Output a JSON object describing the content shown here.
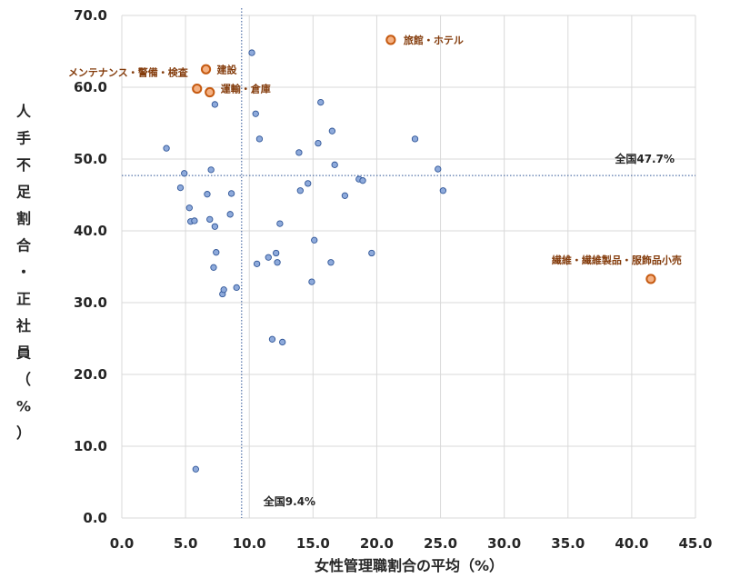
{
  "chart_data": {
    "type": "scatter",
    "xlabel": "女性管理職割合の平均（%）",
    "ylabel_chars": [
      "人",
      "手",
      "不",
      "足",
      "割",
      "合",
      "・",
      "正",
      "社",
      "員",
      "（",
      "%",
      "）"
    ],
    "xlim": [
      0,
      45
    ],
    "ylim": [
      0,
      70
    ],
    "x_ticks": [
      "0.0",
      "5.0",
      "10.0",
      "15.0",
      "20.0",
      "25.0",
      "30.0",
      "35.0",
      "40.0",
      "45.0"
    ],
    "y_ticks": [
      "0.0",
      "10.0",
      "20.0",
      "30.0",
      "40.0",
      "50.0",
      "60.0",
      "70.0"
    ],
    "grid": true,
    "colors": {
      "point_fill": "#8eaadb",
      "point_stroke": "#2f5597",
      "highlight_fill": "#f4b183",
      "highlight_stroke": "#c55a11",
      "highlight_text": "#843c0c",
      "reference_line": "#2f5597",
      "grid": "#d9d9d9"
    },
    "reference_lines": {
      "vertical": {
        "x": 9.4,
        "label": "全国9.4%"
      },
      "horizontal": {
        "y": 47.7,
        "label": "全国47.7%"
      }
    },
    "points": [
      [
        3.5,
        51.5
      ],
      [
        4.6,
        46.0
      ],
      [
        4.9,
        48.0
      ],
      [
        5.3,
        43.2
      ],
      [
        5.4,
        41.3
      ],
      [
        5.7,
        41.4
      ],
      [
        5.8,
        6.8
      ],
      [
        6.7,
        45.1
      ],
      [
        6.9,
        41.6
      ],
      [
        7.0,
        48.5
      ],
      [
        7.2,
        34.9
      ],
      [
        7.3,
        57.6
      ],
      [
        7.3,
        40.6
      ],
      [
        7.4,
        37.0
      ],
      [
        7.9,
        31.2
      ],
      [
        8.0,
        31.8
      ],
      [
        8.5,
        42.3
      ],
      [
        8.6,
        45.2
      ],
      [
        9.0,
        32.1
      ],
      [
        10.2,
        64.8
      ],
      [
        10.5,
        56.3
      ],
      [
        10.6,
        35.4
      ],
      [
        10.8,
        52.8
      ],
      [
        11.5,
        36.3
      ],
      [
        11.8,
        24.9
      ],
      [
        12.1,
        36.9
      ],
      [
        12.2,
        35.6
      ],
      [
        12.4,
        41.0
      ],
      [
        12.6,
        24.5
      ],
      [
        13.9,
        50.9
      ],
      [
        14.0,
        45.6
      ],
      [
        14.6,
        46.6
      ],
      [
        14.9,
        32.9
      ],
      [
        15.1,
        38.7
      ],
      [
        15.4,
        52.2
      ],
      [
        15.6,
        57.9
      ],
      [
        16.4,
        35.6
      ],
      [
        16.5,
        53.9
      ],
      [
        16.7,
        49.2
      ],
      [
        17.5,
        44.9
      ],
      [
        18.6,
        47.2
      ],
      [
        18.9,
        47.0
      ],
      [
        19.6,
        36.9
      ],
      [
        23.0,
        52.8
      ],
      [
        24.8,
        48.6
      ],
      [
        25.2,
        45.6
      ]
    ],
    "highlights": [
      {
        "label": "建設",
        "x": 6.6,
        "y": 62.5
      },
      {
        "label": "メンテナンス・警備・検査",
        "x": 5.9,
        "y": 59.8
      },
      {
        "label": "運輸・倉庫",
        "x": 6.9,
        "y": 59.3
      },
      {
        "label": "旅館・ホテル",
        "x": 21.1,
        "y": 66.6
      },
      {
        "label": "繊維・繊維製品・服飾品小売",
        "x": 41.5,
        "y": 33.3
      }
    ]
  }
}
